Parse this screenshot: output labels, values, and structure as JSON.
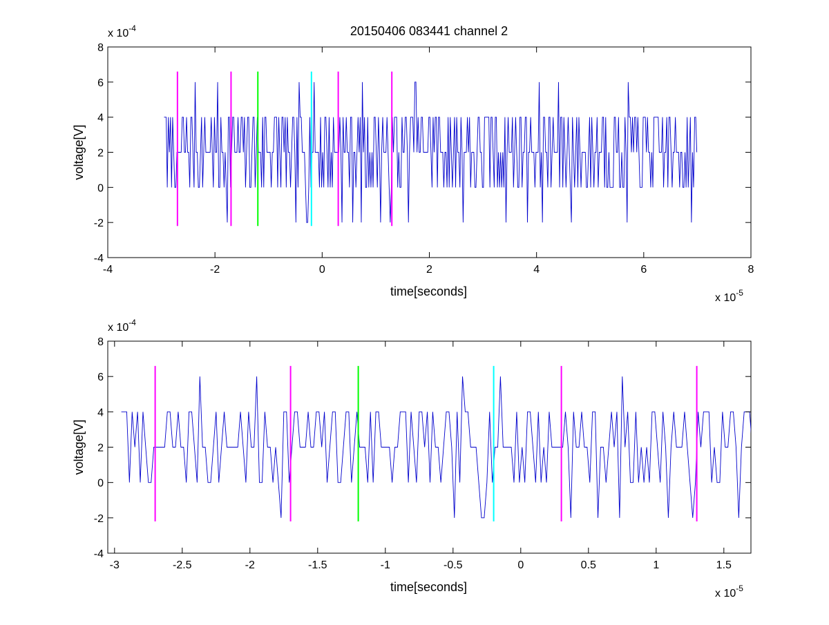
{
  "title": "20150406 083441 channel 2",
  "colors": {
    "signal": "#0000cc",
    "magenta": "#ff00ff",
    "green": "#00ff00",
    "cyan": "#00ffff",
    "axis": "#000000"
  },
  "chart_data": [
    {
      "type": "line",
      "title": "20150406 083441 channel 2",
      "xlabel": "time[seconds]",
      "ylabel": "voltage[V]",
      "x_scale_label": "x 10",
      "x_scale_exp": "-5",
      "y_scale_label": "x 10",
      "y_scale_exp": "-4",
      "xlim": [
        -4,
        8
      ],
      "ylim": [
        -4,
        8
      ],
      "x_ticks": [
        "-4",
        "-2",
        "0",
        "2",
        "4",
        "6",
        "8"
      ],
      "y_ticks": [
        "-4",
        "-2",
        "0",
        "2",
        "4",
        "6",
        "8"
      ],
      "x_tick_values": [
        -4,
        -2,
        0,
        2,
        4,
        6,
        8
      ],
      "y_tick_values": [
        -4,
        -2,
        0,
        2,
        4,
        6,
        8
      ],
      "signal": {
        "x_start": -2.95,
        "x_end": 7.0,
        "step": 0.02,
        "levels": [
          -2,
          0,
          2,
          4,
          6
        ],
        "color": "#0000cc",
        "seed": 7
      },
      "markers": [
        {
          "x": -2.7,
          "color": "#ff00ff",
          "y_range": [
            -2.2,
            6.6
          ]
        },
        {
          "x": -1.7,
          "color": "#ff00ff",
          "y_range": [
            -2.2,
            6.6
          ]
        },
        {
          "x": -1.2,
          "color": "#00ff00",
          "y_range": [
            -2.2,
            6.6
          ]
        },
        {
          "x": -0.2,
          "color": "#00ffff",
          "y_range": [
            -2.2,
            6.6
          ]
        },
        {
          "x": 0.3,
          "color": "#ff00ff",
          "y_range": [
            -2.2,
            6.6
          ]
        },
        {
          "x": 1.3,
          "color": "#ff00ff",
          "y_range": [
            -2.2,
            6.6
          ]
        }
      ]
    },
    {
      "type": "line",
      "xlabel": "time[seconds]",
      "ylabel": "voltage[V]",
      "x_scale_label": "x 10",
      "x_scale_exp": "-5",
      "y_scale_label": "x 10",
      "y_scale_exp": "-4",
      "xlim": [
        -3.05,
        1.7
      ],
      "ylim": [
        -4,
        8
      ],
      "x_ticks": [
        "-3",
        "-2.5",
        "-2",
        "-1.5",
        "-1",
        "-0.5",
        "0",
        "0.5",
        "1",
        "1.5"
      ],
      "y_ticks": [
        "-4",
        "-2",
        "0",
        "2",
        "4",
        "6",
        "8"
      ],
      "x_tick_values": [
        -3,
        -2.5,
        -2,
        -1.5,
        -1,
        -0.5,
        0,
        0.5,
        1,
        1.5
      ],
      "y_tick_values": [
        -4,
        -2,
        0,
        2,
        4,
        6,
        8
      ],
      "signal": {
        "x_start": -2.95,
        "x_end": 1.7,
        "step": 0.02,
        "levels": [
          -2,
          0,
          2,
          4,
          6
        ],
        "color": "#0000cc",
        "seed": 7
      },
      "markers": [
        {
          "x": -2.7,
          "color": "#ff00ff",
          "y_range": [
            -2.2,
            6.6
          ]
        },
        {
          "x": -1.7,
          "color": "#ff00ff",
          "y_range": [
            -2.2,
            6.6
          ]
        },
        {
          "x": -1.2,
          "color": "#00ff00",
          "y_range": [
            -2.2,
            6.6
          ]
        },
        {
          "x": -0.2,
          "color": "#00ffff",
          "y_range": [
            -2.2,
            6.6
          ]
        },
        {
          "x": 0.3,
          "color": "#ff00ff",
          "y_range": [
            -2.2,
            6.6
          ]
        },
        {
          "x": 1.3,
          "color": "#ff00ff",
          "y_range": [
            -2.2,
            6.6
          ]
        }
      ]
    }
  ]
}
